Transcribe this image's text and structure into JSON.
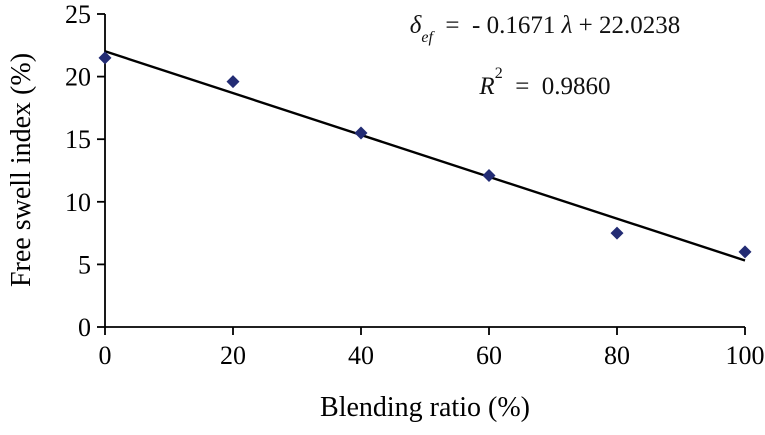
{
  "page": {
    "background": "#ffffff"
  },
  "annotation": {
    "delta": "δ",
    "delta_sub": "ef",
    "eq_mid": "  =  - 0.1671 ",
    "lambda": "λ",
    "eq_end": " + 22.0238",
    "r_label": "R",
    "r_exponent": "2",
    "r_value": "  =  0.9860"
  },
  "chart_data": {
    "type": "scatter",
    "title": "",
    "xlabel": "Blending ratio (%)",
    "ylabel": "Free swell index (%)",
    "xlim": [
      0,
      100
    ],
    "ylim": [
      0,
      25
    ],
    "xticks": [
      0,
      20,
      40,
      60,
      80,
      100
    ],
    "yticks": [
      0,
      5,
      10,
      15,
      20,
      25
    ],
    "grid": false,
    "legend": false,
    "points": [
      [
        0,
        21.5
      ],
      [
        20,
        19.6
      ],
      [
        40,
        15.5
      ],
      [
        60,
        12.1
      ],
      [
        80,
        7.5
      ],
      [
        100,
        6.0
      ]
    ],
    "trendline": {
      "type": "linear",
      "slope": -0.1671,
      "intercept": 22.0238,
      "r_squared": 0.986
    },
    "colors": {
      "marker": "#232c74",
      "line": "#000000",
      "axis": "#000000",
      "text": "#000000"
    }
  }
}
